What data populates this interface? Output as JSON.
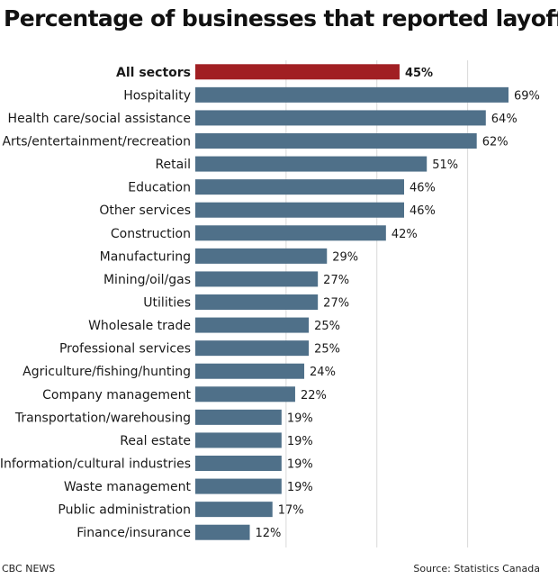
{
  "chart_data": {
    "type": "bar",
    "orientation": "horizontal",
    "title": "Percentage of businesses that reported layoffs",
    "categories": [
      "All sectors",
      "Hospitality",
      "Health care/social assistance",
      "Arts/entertainment/recreation",
      "Retail",
      "Education",
      "Other services",
      "Construction",
      "Manufacturing",
      "Mining/oil/gas",
      "Utilities",
      "Wholesale trade",
      "Professional services",
      "Agriculture/fishing/hunting",
      "Company management",
      "Transportation/warehousing",
      "Real estate",
      "Information/cultural industries",
      "Waste management",
      "Public administration",
      "Finance/insurance"
    ],
    "values": [
      45,
      69,
      64,
      62,
      51,
      46,
      46,
      42,
      29,
      27,
      27,
      25,
      25,
      24,
      22,
      19,
      19,
      19,
      19,
      17,
      12
    ],
    "value_labels": [
      "45%",
      "69%",
      "64%",
      "62%",
      "51%",
      "46%",
      "46%",
      "42%",
      "29%",
      "27%",
      "27%",
      "25%",
      "25%",
      "24%",
      "22%",
      "19%",
      "19%",
      "19%",
      "19%",
      "17%",
      "12%"
    ],
    "highlight_category": "All sectors",
    "unit": "%",
    "xlim": [
      0,
      70
    ],
    "grid": true,
    "colors": {
      "bar": "#4f7089",
      "highlight": "#a11f23",
      "grid": "#d9d9d9"
    }
  },
  "footer": {
    "credit": "CBC NEWS",
    "source": "Source: Statistics Canada"
  }
}
